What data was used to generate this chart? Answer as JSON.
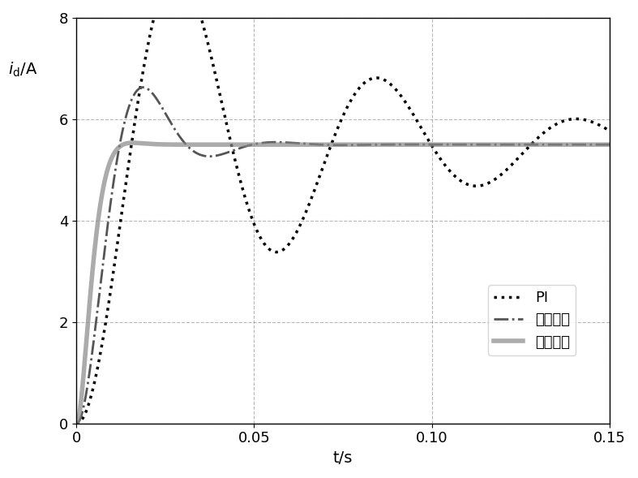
{
  "title": "",
  "xlabel": "t/s",
  "ylabel": "$i_{\\mathrm{d}}$/A",
  "xlim": [
    0,
    0.15
  ],
  "ylim": [
    0,
    8
  ],
  "xticks": [
    0,
    0.05,
    0.1,
    0.15
  ],
  "yticks": [
    0,
    2,
    4,
    6,
    8
  ],
  "steady_state": 5.5,
  "legend": [
    "PI",
    "线性滑模",
    "高阶滑模"
  ],
  "bg_color": "#ffffff",
  "grid_color": "#999999",
  "line_color": "#000000"
}
